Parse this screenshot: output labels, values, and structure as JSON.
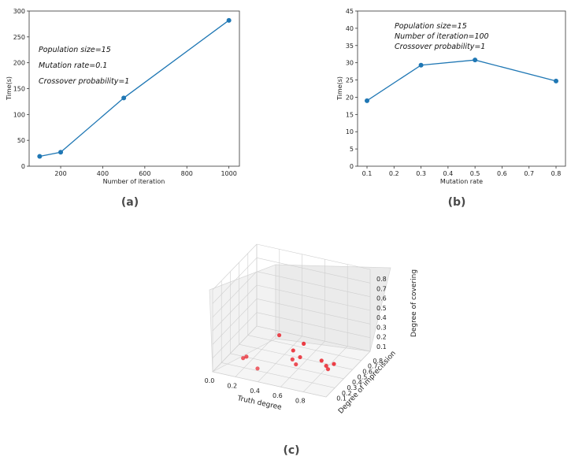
{
  "captions": {
    "a": "(a)",
    "b": "(b)",
    "c": "(c)"
  },
  "chart_data": [
    {
      "id": "a",
      "type": "line",
      "xlabel": "Number of iteration",
      "ylabel": "Time(s)",
      "x": [
        100,
        200,
        500,
        1000
      ],
      "y": [
        19,
        27,
        132,
        282
      ],
      "xlim": [
        50,
        1050
      ],
      "ylim": [
        0,
        300
      ],
      "xticks": [
        200,
        400,
        600,
        800,
        1000
      ],
      "yticks": [
        0,
        50,
        100,
        150,
        200,
        250,
        300
      ],
      "annotations": [
        "Population size=15",
        "Mutation rate=0.1",
        "Crossover probability=1"
      ],
      "color": "#1f77b4"
    },
    {
      "id": "b",
      "type": "line",
      "xlabel": "Mutation rate",
      "ylabel": "Time(s)",
      "x": [
        0.1,
        0.3,
        0.5,
        0.8
      ],
      "y": [
        19,
        29.3,
        30.8,
        24.7
      ],
      "xlim": [
        0.065,
        0.835
      ],
      "ylim": [
        0,
        45
      ],
      "xticks": [
        0.1,
        0.2,
        0.3,
        0.4,
        0.5,
        0.6,
        0.7,
        0.8
      ],
      "yticks": [
        0,
        5,
        10,
        15,
        20,
        25,
        30,
        35,
        40,
        45
      ],
      "annotations": [
        "Population size=15",
        "Number of iteration=100",
        "Crossover probability=1"
      ],
      "color": "#1f77b4"
    },
    {
      "id": "c",
      "type": "scatter",
      "projection": "3d",
      "xlabel": "Truth degree",
      "ylabel": "Degree of imprecission",
      "zlabel": "Degree of covering",
      "xticks": [
        "0.0",
        "0.2",
        "0.4",
        "0.6",
        "0.8"
      ],
      "yticks": [
        "0.1",
        "0.2",
        "0.3",
        "0.4",
        "0.5",
        "0.6",
        "0.7",
        "0.8"
      ],
      "zticks": [
        "0.1",
        "0.2",
        "0.3",
        "0.4",
        "0.5",
        "0.6",
        "0.7",
        "0.8"
      ],
      "color": "#e8000b",
      "points": [
        {
          "x": 0.45,
          "y": 0.35,
          "z": 0.38
        },
        {
          "x": 0.62,
          "y": 0.45,
          "z": 0.28
        },
        {
          "x": 0.55,
          "y": 0.4,
          "z": 0.22
        },
        {
          "x": 0.62,
          "y": 0.38,
          "z": 0.18
        },
        {
          "x": 0.58,
          "y": 0.32,
          "z": 0.18
        },
        {
          "x": 0.62,
          "y": 0.3,
          "z": 0.15
        },
        {
          "x": 0.8,
          "y": 0.4,
          "z": 0.18
        },
        {
          "x": 0.85,
          "y": 0.38,
          "z": 0.15
        },
        {
          "x": 0.88,
          "y": 0.35,
          "z": 0.14
        },
        {
          "x": 0.9,
          "y": 0.42,
          "z": 0.16
        },
        {
          "x": 0.2,
          "y": 0.2,
          "z": 0.16
        },
        {
          "x": 0.22,
          "y": 0.22,
          "z": 0.17
        },
        {
          "x": 0.35,
          "y": 0.15,
          "z": 0.12
        }
      ]
    }
  ]
}
